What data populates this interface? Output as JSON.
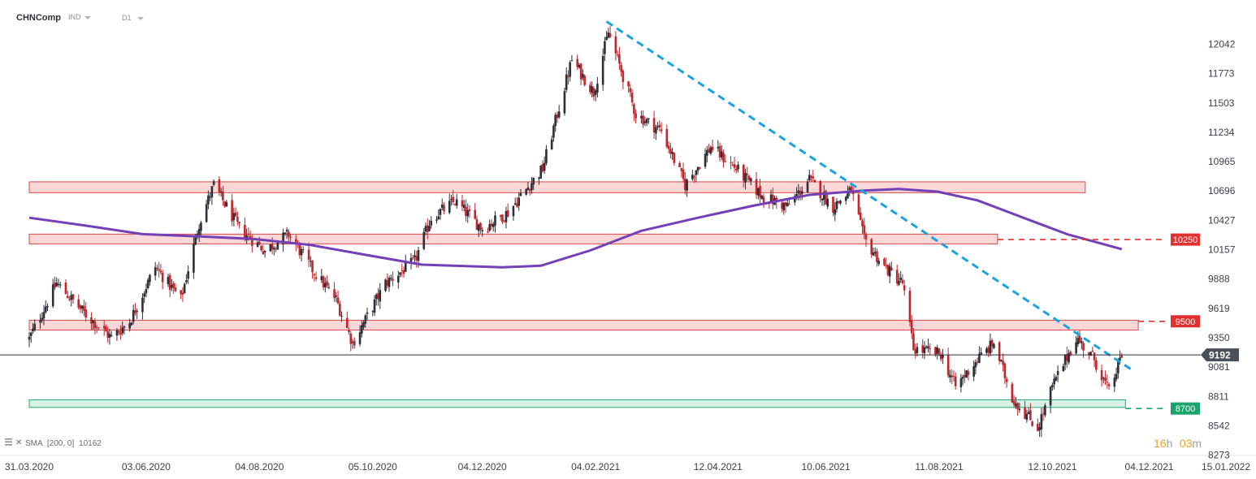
{
  "header": {
    "symbol": "CHNComp",
    "type": "IND",
    "interval": "D1"
  },
  "indicator": {
    "name": "SMA",
    "params": "[200, 0]",
    "value": "10162"
  },
  "timer": {
    "hours": "16",
    "hours_unit": "h",
    "minutes": "03",
    "minutes_unit": "m"
  },
  "current_price": "9192",
  "colors": {
    "up": "#2b2f38",
    "down": "#c0262c",
    "sma": "#7440b8",
    "trendline": "#1aa3e0",
    "resistance": "#e03030",
    "support": "#1aa36a"
  },
  "chart_data": {
    "type": "candlestick",
    "title": "",
    "xlabel": "",
    "ylabel": "",
    "ylim": [
      8273,
      12311
    ],
    "y_ticks": [
      "12042",
      "11773",
      "11503",
      "11234",
      "10965",
      "10696",
      "10427",
      "10157",
      "9888",
      "9619",
      "9350",
      "9081",
      "8811",
      "8542",
      "8273"
    ],
    "x_ticks": [
      "31.03.2020",
      "03.06.2020",
      "04.08.2020",
      "05.10.2020",
      "04.12.2020",
      "04.02.2021",
      "12.04.2021",
      "10.06.2021",
      "11.08.2021",
      "12.10.2021",
      "04.12.2021",
      "15.01.2022"
    ],
    "close_path": [
      [
        "2020-03-31",
        9340
      ],
      [
        "2020-04-15",
        9850
      ],
      [
        "2020-05-01",
        9560
      ],
      [
        "2020-05-15",
        9350
      ],
      [
        "2020-05-25",
        9500
      ],
      [
        "2020-06-08",
        10000
      ],
      [
        "2020-06-22",
        9700
      ],
      [
        "2020-07-02",
        10400
      ],
      [
        "2020-07-10",
        10750
      ],
      [
        "2020-07-24",
        10350
      ],
      [
        "2020-08-07",
        10150
      ],
      [
        "2020-08-20",
        10300
      ],
      [
        "2020-09-03",
        9950
      ],
      [
        "2020-09-15",
        9700
      ],
      [
        "2020-09-24",
        9300
      ],
      [
        "2020-10-12",
        9850
      ],
      [
        "2020-10-28",
        10050
      ],
      [
        "2020-11-06",
        10450
      ],
      [
        "2020-11-19",
        10600
      ],
      [
        "2020-12-04",
        10350
      ],
      [
        "2020-12-18",
        10500
      ],
      [
        "2021-01-06",
        10900
      ],
      [
        "2021-01-22",
        11900
      ],
      [
        "2021-02-03",
        11600
      ],
      [
        "2021-02-11",
        12150
      ],
      [
        "2021-02-26",
        11400
      ],
      [
        "2021-03-12",
        11250
      ],
      [
        "2021-03-25",
        10750
      ],
      [
        "2021-04-08",
        11100
      ],
      [
        "2021-04-22",
        10900
      ],
      [
        "2021-05-06",
        10650
      ],
      [
        "2021-05-20",
        10550
      ],
      [
        "2021-06-01",
        10800
      ],
      [
        "2021-06-14",
        10550
      ],
      [
        "2021-06-24",
        10700
      ],
      [
        "2021-07-01",
        10250
      ],
      [
        "2021-07-12",
        10000
      ],
      [
        "2021-07-22",
        9850
      ],
      [
        "2021-07-28",
        9250
      ],
      [
        "2021-08-12",
        9200
      ],
      [
        "2021-08-20",
        8900
      ],
      [
        "2021-09-01",
        9150
      ],
      [
        "2021-09-10",
        9300
      ],
      [
        "2021-09-20",
        8800
      ],
      [
        "2021-10-04",
        8520
      ],
      [
        "2021-10-12",
        8900
      ],
      [
        "2021-10-25",
        9350
      ],
      [
        "2021-11-04",
        9150
      ],
      [
        "2021-11-12",
        8850
      ],
      [
        "2021-11-19",
        9192
      ]
    ],
    "series": [
      {
        "name": "SMA [200, 0]",
        "type": "line",
        "points": [
          [
            "2020-03-31",
            10450
          ],
          [
            "2020-04-30",
            10380
          ],
          [
            "2020-06-01",
            10300
          ],
          [
            "2020-07-01",
            10280
          ],
          [
            "2020-08-01",
            10255
          ],
          [
            "2020-09-01",
            10200
          ],
          [
            "2020-10-01",
            10110
          ],
          [
            "2020-11-01",
            10020
          ],
          [
            "2020-12-15",
            9995
          ],
          [
            "2021-01-05",
            10010
          ],
          [
            "2021-02-01",
            10150
          ],
          [
            "2021-03-01",
            10330
          ],
          [
            "2021-04-01",
            10450
          ],
          [
            "2021-05-01",
            10560
          ],
          [
            "2021-06-01",
            10660
          ],
          [
            "2021-07-01",
            10700
          ],
          [
            "2021-07-20",
            10715
          ],
          [
            "2021-08-10",
            10690
          ],
          [
            "2021-09-01",
            10610
          ],
          [
            "2021-10-01",
            10420
          ],
          [
            "2021-10-20",
            10300
          ],
          [
            "2021-11-19",
            10162
          ]
        ]
      }
    ],
    "trendline": {
      "from": [
        "2021-02-10",
        12250
      ],
      "to": [
        "2021-11-24",
        9060
      ]
    },
    "zones": [
      {
        "top": 10780,
        "bottom": 10680,
        "from": "2020-03-31",
        "to": "2021-10-30",
        "kind": "resistance"
      },
      {
        "top": 10300,
        "bottom": 10210,
        "from": "2020-03-31",
        "to": "2021-09-12",
        "kind": "resistance"
      },
      {
        "top": 9510,
        "bottom": 9420,
        "from": "2020-03-31",
        "to": "2021-11-28",
        "kind": "resistance"
      },
      {
        "top": 8780,
        "bottom": 8710,
        "from": "2020-03-31",
        "to": "2021-11-21",
        "kind": "support"
      }
    ],
    "levels": [
      {
        "value": 10250,
        "label": "10250",
        "from": "2021-09-12",
        "kind": "resistance"
      },
      {
        "value": 9500,
        "label": "9500",
        "from": "2021-11-28",
        "kind": "resistance"
      },
      {
        "value": 8700,
        "label": "8700",
        "from": "2021-11-21",
        "kind": "support"
      }
    ],
    "current_value": 9192
  }
}
